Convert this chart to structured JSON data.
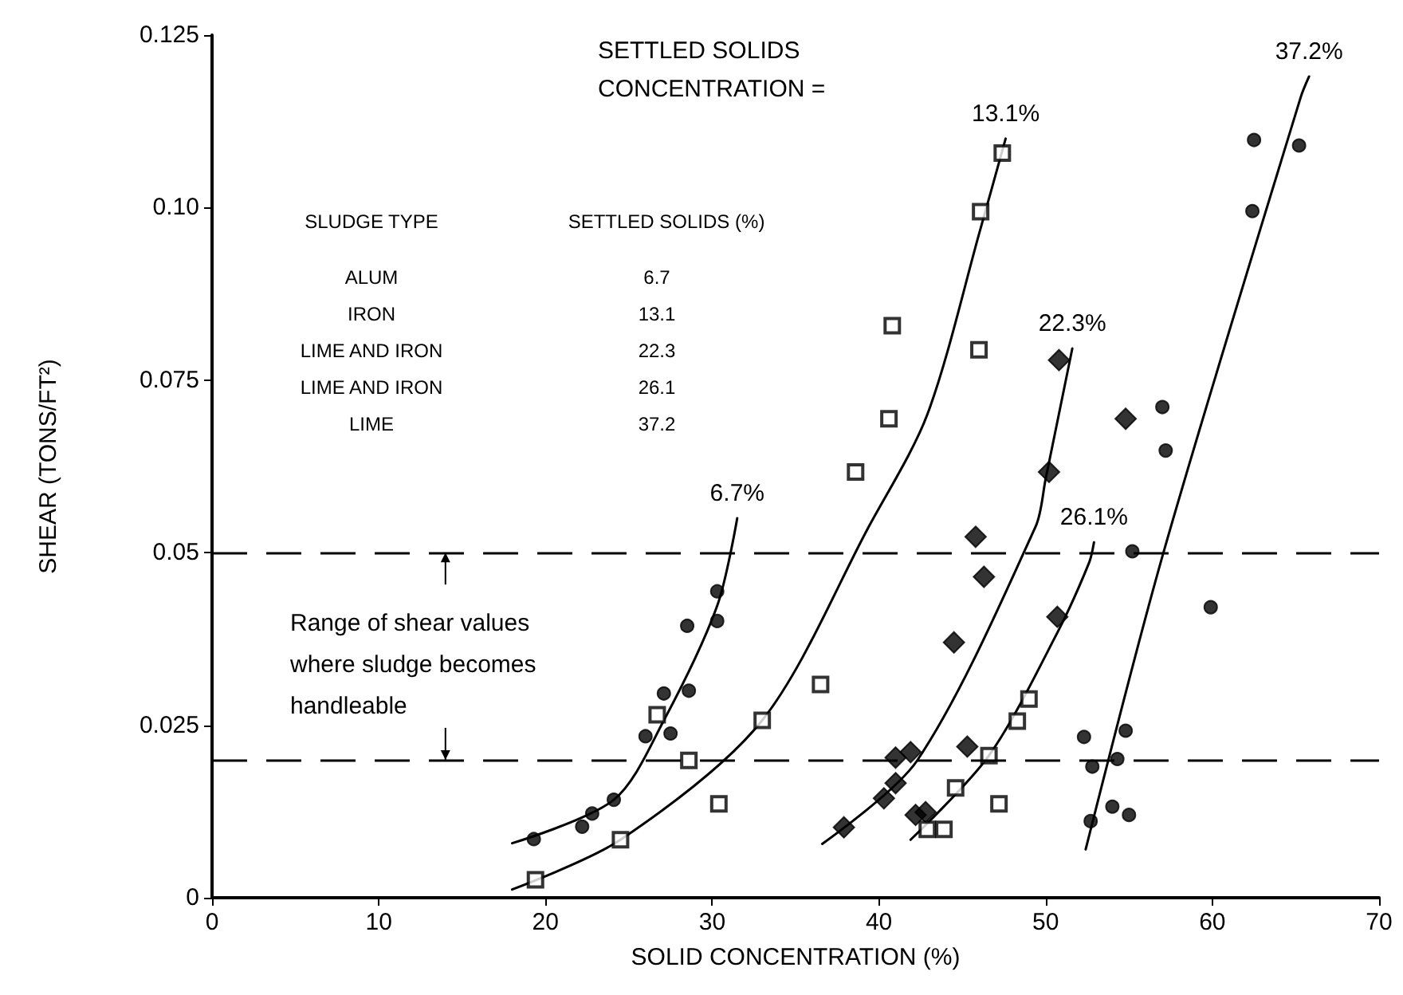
{
  "chart_data": {
    "type": "scatter",
    "xlabel": "SOLID CONCENTRATION (%)",
    "ylabel": "SHEAR (TONS/FT²)",
    "xlim": [
      0,
      70
    ],
    "xticks": [
      0,
      10,
      20,
      30,
      40,
      50,
      60,
      70
    ],
    "ylim": [
      0,
      0.125
    ],
    "yticks": [
      0,
      0.025,
      0.05,
      0.075,
      {
        "value": 0.1,
        "label": "0.10"
      },
      0.125
    ],
    "grid": false,
    "legend": false,
    "series": [
      {
        "marker": "circle",
        "color": "#000000",
        "x": [
          19.3,
          22.2,
          22.8,
          24.1,
          26.0,
          27.5,
          27.1,
          28.6,
          28.5,
          30.3,
          30.3
        ],
        "values": [
          0.0085,
          0.0103,
          0.0122,
          0.0142,
          0.0234,
          0.0238,
          0.0296,
          0.03,
          0.0394,
          0.0401,
          0.0444
        ]
      },
      {
        "type": "line",
        "name": "6.7%",
        "marker": "none",
        "line_style": "solid",
        "color": "#000000",
        "x": [
          18.0,
          24.1,
          27.1,
          30.3,
          31.5
        ],
        "values": [
          0.0079,
          0.0142,
          0.0257,
          0.0423,
          0.055
        ]
      },
      {
        "marker": "square",
        "color": "#000000",
        "x": [
          19.4,
          24.5,
          26.7,
          28.6,
          30.4,
          33.0,
          36.5,
          38.6,
          40.6,
          40.8,
          46.0,
          46.1,
          47.4
        ],
        "values": [
          0.0026,
          0.0084,
          0.0265,
          0.0199,
          0.0136,
          0.0257,
          0.0309,
          0.0617,
          0.0694,
          0.0829,
          0.0794,
          0.0994,
          0.1079
        ]
      },
      {
        "type": "line",
        "name": "13.1%",
        "marker": "none",
        "line_style": "solid",
        "color": "#000000",
        "x": [
          18.0,
          24.5,
          33.0,
          39.4,
          42.9,
          46.1,
          47.6
        ],
        "values": [
          0.0012,
          0.0084,
          0.0257,
          0.0538,
          0.07,
          0.097,
          0.11
        ]
      },
      {
        "marker": "diamond",
        "color": "#000000",
        "x": [
          37.9,
          40.3,
          41.0,
          41.0,
          41.9,
          42.2,
          42.8,
          44.5,
          46.3,
          45.8,
          45.3,
          50.7,
          50.2,
          50.8,
          54.8
        ],
        "values": [
          0.0102,
          0.0144,
          0.0166,
          0.0203,
          0.0211,
          0.012,
          0.0124,
          0.037,
          0.0465,
          0.0523,
          0.0219,
          0.0407,
          0.0617,
          0.0779,
          0.0694
        ]
      },
      {
        "type": "line",
        "name": "22.3%",
        "marker": "none",
        "line_style": "solid",
        "color": "#000000",
        "x": [
          36.6,
          42.3,
          49.4,
          50.0,
          51.6
        ],
        "values": [
          0.0078,
          0.0199,
          0.0538,
          0.0607,
          0.0796
        ]
      },
      {
        "marker": "square",
        "color": "#000000",
        "x": [
          42.9,
          43.9,
          44.6,
          47.2,
          46.6,
          48.3,
          49.0
        ],
        "values": [
          0.0099,
          0.0099,
          0.0159,
          0.0136,
          0.0206,
          0.0256,
          0.0288
        ]
      },
      {
        "type": "line",
        "name": "26.1%",
        "marker": "none",
        "line_style": "solid",
        "color": "#000000",
        "x": [
          41.9,
          46.6,
          50.7,
          52.6,
          52.9
        ],
        "values": [
          0.0084,
          0.0206,
          0.0384,
          0.0485,
          0.0515
        ]
      },
      {
        "marker": "circle",
        "color": "#000000",
        "x": [
          62.5,
          65.2,
          62.4,
          57.0,
          57.2,
          55.2,
          59.9,
          52.3,
          54.8,
          52.8,
          54.3,
          54.0,
          55.0,
          52.7
        ],
        "values": [
          0.1098,
          0.109,
          0.0995,
          0.0711,
          0.0648,
          0.0502,
          0.0421,
          0.0233,
          0.0242,
          0.019,
          0.0201,
          0.0132,
          0.012,
          0.0111
        ]
      },
      {
        "type": "line",
        "name": "37.2%",
        "marker": "none",
        "line_style": "solid",
        "color": "#000000",
        "x": [
          52.4,
          57.1,
          65.3,
          65.8
        ],
        "values": [
          0.007,
          0.0503,
          0.116,
          0.119
        ]
      }
    ],
    "ref_lines": [
      {
        "axis": "y",
        "value": 0.05,
        "color": "#000000",
        "line_style": "dashed"
      },
      {
        "axis": "y",
        "value": 0.02,
        "color": "#000000",
        "line_style": "dashed"
      }
    ],
    "annotations": [
      "SETTLED SOLIDS CONCENTRATION =",
      "Range of shear values where sludge becomes handleable",
      "SLUDGE TYPE",
      "SETTLED SOLIDS (%)",
      "ALUM",
      "6.7",
      "IRON",
      "13.1",
      "LIME AND IRON",
      "22.3",
      "LIME AND IRON",
      "26.1",
      "LIME",
      "37.2"
    ]
  }
}
